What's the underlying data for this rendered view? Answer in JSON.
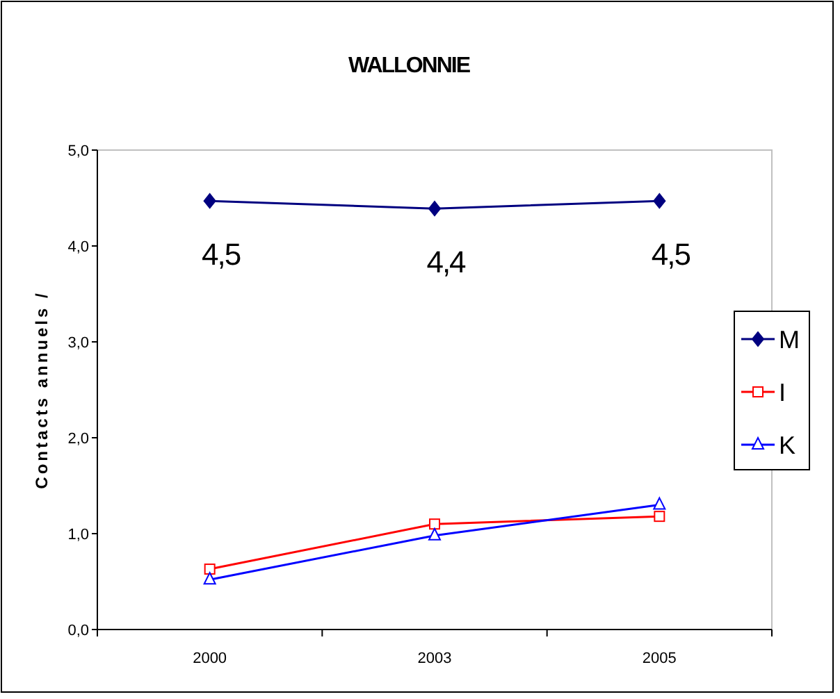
{
  "chart_data": {
    "type": "line",
    "title": "WALLONNIE",
    "ylabel": "Contacts annuels /",
    "categories": [
      "2000",
      "2003",
      "2005"
    ],
    "series": [
      {
        "name": "M",
        "color": "#000080",
        "marker": "diamond",
        "values": [
          4.47,
          4.39,
          4.47
        ],
        "value_labels": [
          "4,5",
          "4,4",
          "4,5"
        ]
      },
      {
        "name": "I",
        "color": "#ff0000",
        "marker": "square",
        "values": [
          0.63,
          1.1,
          1.18
        ]
      },
      {
        "name": "K",
        "color": "#0000ff",
        "marker": "triangle",
        "values": [
          0.52,
          0.98,
          1.3
        ]
      }
    ],
    "ylim": [
      0,
      5
    ],
    "yticks": [
      {
        "value": 0,
        "label": "0,0"
      },
      {
        "value": 1,
        "label": "1,0"
      },
      {
        "value": 2,
        "label": "2,0"
      },
      {
        "value": 3,
        "label": "3,0"
      },
      {
        "value": 4,
        "label": "4,0"
      },
      {
        "value": 5,
        "label": "5,0"
      }
    ],
    "grid": false,
    "legend": "right"
  }
}
